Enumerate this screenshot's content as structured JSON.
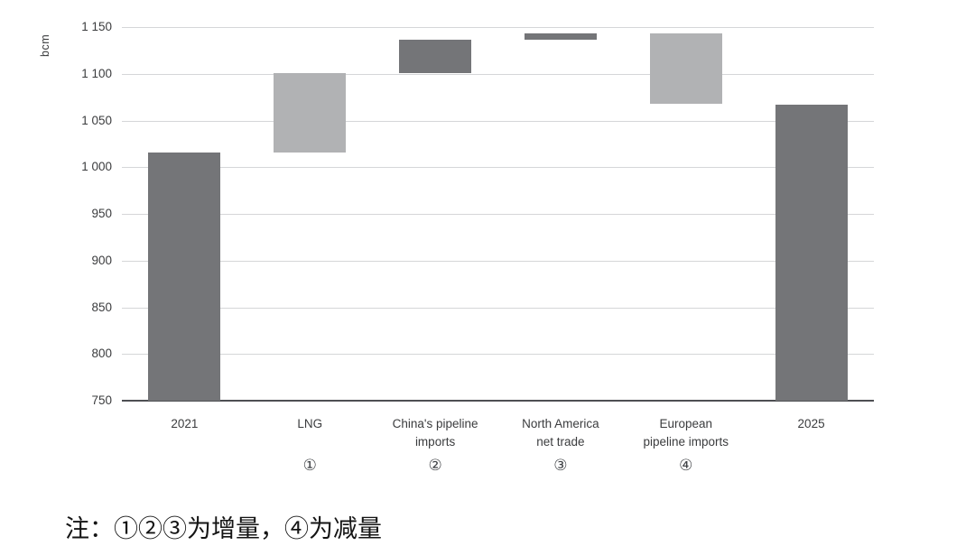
{
  "chart_data": {
    "type": "bar",
    "subtype": "waterfall",
    "title": "",
    "xlabel": "",
    "ylabel": "bcm",
    "unit": "bcm",
    "ylim": [
      750,
      1150
    ],
    "ytick_interval": 50,
    "ytick_labels_top_to_bottom": [
      "1 150",
      "1 100",
      "1 050",
      "1 000",
      "950",
      "900",
      "850",
      "800",
      "750"
    ],
    "grid": "horizontal",
    "legend_position": "none",
    "categories": [
      "2021",
      "LNG",
      "China's pipeline imports",
      "North America net trade",
      "European pipeline imports",
      "2025"
    ],
    "segments": [
      {
        "label_lines": [
          "2021"
        ],
        "marker": "",
        "from": 750,
        "to": 1016,
        "shade": "dark",
        "role": "total"
      },
      {
        "label_lines": [
          "LNG"
        ],
        "marker": "①",
        "from": 1016,
        "to": 1101,
        "shade": "light",
        "role": "increase",
        "delta": 85
      },
      {
        "label_lines": [
          "China's pipeline",
          "imports"
        ],
        "marker": "②",
        "from": 1101,
        "to": 1136,
        "shade": "dark",
        "role": "increase",
        "delta": 35
      },
      {
        "label_lines": [
          "North America",
          "net trade"
        ],
        "marker": "③",
        "from": 1136,
        "to": 1143,
        "shade": "dark",
        "role": "increase",
        "delta": 7
      },
      {
        "label_lines": [
          "European",
          "pipeline imports"
        ],
        "marker": "④",
        "from": 1143,
        "to": 1068,
        "shade": "light",
        "role": "decrease",
        "delta": -75
      },
      {
        "label_lines": [
          "2025"
        ],
        "marker": "",
        "from": 750,
        "to": 1067,
        "shade": "dark",
        "role": "total"
      }
    ],
    "colors": {
      "bar_dark": "#747578",
      "bar_light": "#b1b2b4",
      "gridline": "#d5d6d8",
      "baseline": "#4e4f53",
      "axis_text": "#3b3c3e"
    }
  },
  "note": {
    "text": "注：①②③为增量，④为减量"
  }
}
